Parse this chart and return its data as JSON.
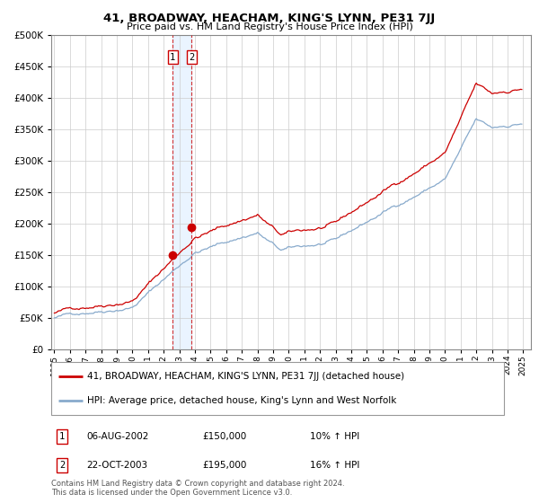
{
  "title": "41, BROADWAY, HEACHAM, KING'S LYNN, PE31 7JJ",
  "subtitle": "Price paid vs. HM Land Registry's House Price Index (HPI)",
  "legend_line1": "41, BROADWAY, HEACHAM, KING'S LYNN, PE31 7JJ (detached house)",
  "legend_line2": "HPI: Average price, detached house, King's Lynn and West Norfolk",
  "transaction1_date": "06-AUG-2002",
  "transaction1_price": "£150,000",
  "transaction1_hpi": "10% ↑ HPI",
  "transaction2_date": "22-OCT-2003",
  "transaction2_price": "£195,000",
  "transaction2_hpi": "16% ↑ HPI",
  "footnote": "Contains HM Land Registry data © Crown copyright and database right 2024.\nThis data is licensed under the Open Government Licence v3.0.",
  "price_line_color": "#cc0000",
  "hpi_line_color": "#88aacc",
  "vline_color": "#cc0000",
  "marker_color": "#cc0000",
  "box_color": "#cc0000",
  "shade_color": "#ddeeff",
  "ylim": [
    0,
    500000
  ],
  "yticks": [
    0,
    50000,
    100000,
    150000,
    200000,
    250000,
    300000,
    350000,
    400000,
    450000,
    500000
  ],
  "xlim_start": 1994.8,
  "xlim_end": 2025.5,
  "transaction1_x": 2002.58,
  "transaction2_x": 2003.79,
  "transaction1_y": 150000,
  "transaction2_y": 195000
}
